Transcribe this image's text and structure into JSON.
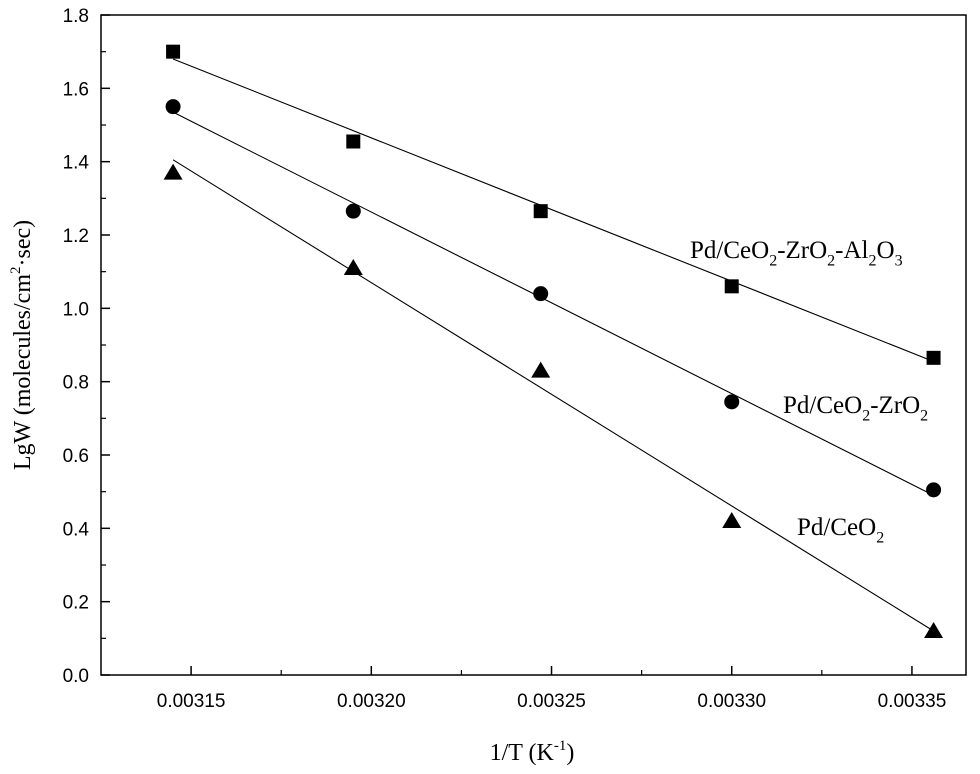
{
  "chart_data": {
    "type": "scatter",
    "xlabel": "1/T (K⁻¹)",
    "ylabel": "LgW (molecules/cm²·sec)",
    "xlim": [
      0.003125,
      0.003365
    ],
    "ylim": [
      0.0,
      1.8
    ],
    "xticks": [
      0.00315,
      0.0032,
      0.00325,
      0.0033,
      0.00335
    ],
    "xtick_labels": [
      "0.00315",
      "0.00320",
      "0.00325",
      "0.00330",
      "0.00335"
    ],
    "yticks": [
      0.0,
      0.2,
      0.4,
      0.6,
      0.8,
      1.0,
      1.2,
      1.4,
      1.6,
      1.8
    ],
    "ytick_labels": [
      "0.0",
      "0.2",
      "0.4",
      "0.6",
      "0.8",
      "1.0",
      "1.2",
      "1.4",
      "1.6",
      "1.8"
    ],
    "x": [
      0.003145,
      0.003195,
      0.003247,
      0.0033,
      0.003356
    ],
    "grid": false,
    "legend": "none",
    "series": [
      {
        "label": "Pd/CeO₂-ZrO₂-Al₂O₃",
        "marker": "square",
        "values": [
          1.7,
          1.455,
          1.265,
          1.06,
          0.865
        ],
        "fit": [
          1.68,
          0.855
        ]
      },
      {
        "label": "Pd/CeO₂-ZrO₂",
        "marker": "circle",
        "values": [
          1.55,
          1.265,
          1.04,
          0.745,
          0.505
        ],
        "fit": [
          1.535,
          0.49
        ]
      },
      {
        "label": "Pd/CeO₂",
        "marker": "triangle",
        "values": [
          1.37,
          1.11,
          0.83,
          0.42,
          0.12
        ],
        "fit": [
          1.405,
          0.12
        ]
      }
    ]
  }
}
